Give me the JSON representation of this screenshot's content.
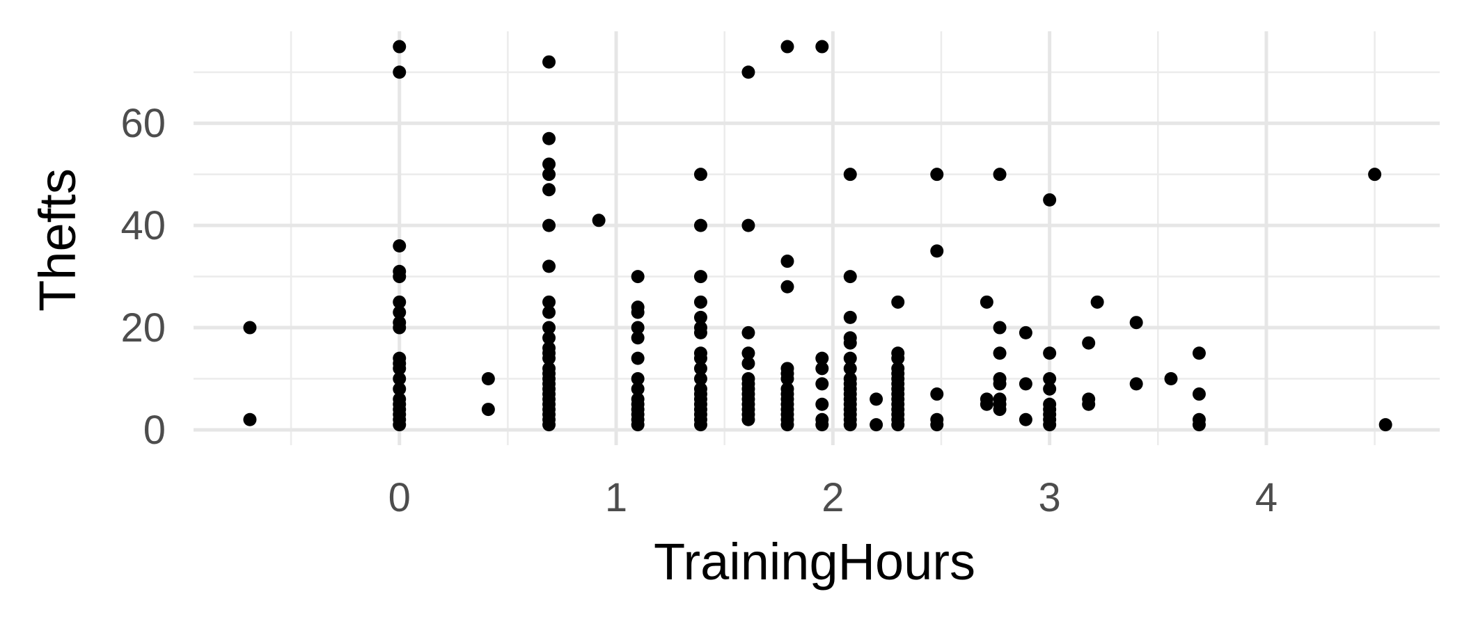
{
  "chart_data": {
    "type": "scatter",
    "title": "",
    "xlabel": "TrainingHours",
    "ylabel": "Thefts",
    "xlim": [
      -0.95,
      4.8
    ],
    "ylim": [
      -3,
      78
    ],
    "x_ticks": [
      0,
      1,
      2,
      3,
      4
    ],
    "y_ticks": [
      0,
      20,
      40,
      60
    ],
    "grid": true,
    "legend": "none",
    "point_color": "#000000",
    "points": [
      {
        "x": -0.69,
        "y": 2
      },
      {
        "x": -0.69,
        "y": 20
      },
      {
        "x": 0,
        "y": 75
      },
      {
        "x": 0,
        "y": 70
      },
      {
        "x": 0,
        "y": 36
      },
      {
        "x": 0,
        "y": 31
      },
      {
        "x": 0,
        "y": 30
      },
      {
        "x": 0,
        "y": 25
      },
      {
        "x": 0,
        "y": 23
      },
      {
        "x": 0,
        "y": 21
      },
      {
        "x": 0,
        "y": 20
      },
      {
        "x": 0,
        "y": 14
      },
      {
        "x": 0,
        "y": 13
      },
      {
        "x": 0,
        "y": 12
      },
      {
        "x": 0,
        "y": 10
      },
      {
        "x": 0,
        "y": 8
      },
      {
        "x": 0,
        "y": 6
      },
      {
        "x": 0,
        "y": 5
      },
      {
        "x": 0,
        "y": 4
      },
      {
        "x": 0,
        "y": 3
      },
      {
        "x": 0,
        "y": 2
      },
      {
        "x": 0,
        "y": 1
      },
      {
        "x": 0.41,
        "y": 10
      },
      {
        "x": 0.41,
        "y": 4
      },
      {
        "x": 0.69,
        "y": 72
      },
      {
        "x": 0.69,
        "y": 57
      },
      {
        "x": 0.69,
        "y": 52
      },
      {
        "x": 0.69,
        "y": 50
      },
      {
        "x": 0.69,
        "y": 47
      },
      {
        "x": 0.69,
        "y": 40
      },
      {
        "x": 0.69,
        "y": 32
      },
      {
        "x": 0.69,
        "y": 25
      },
      {
        "x": 0.69,
        "y": 23
      },
      {
        "x": 0.69,
        "y": 20
      },
      {
        "x": 0.69,
        "y": 18
      },
      {
        "x": 0.69,
        "y": 16
      },
      {
        "x": 0.69,
        "y": 15
      },
      {
        "x": 0.69,
        "y": 14
      },
      {
        "x": 0.69,
        "y": 12
      },
      {
        "x": 0.69,
        "y": 11
      },
      {
        "x": 0.69,
        "y": 10
      },
      {
        "x": 0.69,
        "y": 9
      },
      {
        "x": 0.69,
        "y": 8
      },
      {
        "x": 0.69,
        "y": 7
      },
      {
        "x": 0.69,
        "y": 6
      },
      {
        "x": 0.69,
        "y": 5
      },
      {
        "x": 0.69,
        "y": 4
      },
      {
        "x": 0.69,
        "y": 3
      },
      {
        "x": 0.69,
        "y": 2
      },
      {
        "x": 0.69,
        "y": 1
      },
      {
        "x": 0.92,
        "y": 41
      },
      {
        "x": 1.1,
        "y": 30
      },
      {
        "x": 1.1,
        "y": 24
      },
      {
        "x": 1.1,
        "y": 23
      },
      {
        "x": 1.1,
        "y": 20
      },
      {
        "x": 1.1,
        "y": 18
      },
      {
        "x": 1.1,
        "y": 14
      },
      {
        "x": 1.1,
        "y": 10
      },
      {
        "x": 1.1,
        "y": 8
      },
      {
        "x": 1.1,
        "y": 6
      },
      {
        "x": 1.1,
        "y": 5
      },
      {
        "x": 1.1,
        "y": 4
      },
      {
        "x": 1.1,
        "y": 3
      },
      {
        "x": 1.1,
        "y": 2
      },
      {
        "x": 1.1,
        "y": 1
      },
      {
        "x": 1.39,
        "y": 50
      },
      {
        "x": 1.39,
        "y": 40
      },
      {
        "x": 1.39,
        "y": 30
      },
      {
        "x": 1.39,
        "y": 25
      },
      {
        "x": 1.39,
        "y": 22
      },
      {
        "x": 1.39,
        "y": 20
      },
      {
        "x": 1.39,
        "y": 19
      },
      {
        "x": 1.39,
        "y": 15
      },
      {
        "x": 1.39,
        "y": 14
      },
      {
        "x": 1.39,
        "y": 12
      },
      {
        "x": 1.39,
        "y": 10
      },
      {
        "x": 1.39,
        "y": 8
      },
      {
        "x": 1.39,
        "y": 7
      },
      {
        "x": 1.39,
        "y": 6
      },
      {
        "x": 1.39,
        "y": 5
      },
      {
        "x": 1.39,
        "y": 4
      },
      {
        "x": 1.39,
        "y": 3
      },
      {
        "x": 1.39,
        "y": 2
      },
      {
        "x": 1.39,
        "y": 1
      },
      {
        "x": 1.61,
        "y": 70
      },
      {
        "x": 1.61,
        "y": 40
      },
      {
        "x": 1.61,
        "y": 19
      },
      {
        "x": 1.61,
        "y": 15
      },
      {
        "x": 1.61,
        "y": 13
      },
      {
        "x": 1.61,
        "y": 10
      },
      {
        "x": 1.61,
        "y": 9
      },
      {
        "x": 1.61,
        "y": 8
      },
      {
        "x": 1.61,
        "y": 7
      },
      {
        "x": 1.61,
        "y": 6
      },
      {
        "x": 1.61,
        "y": 5
      },
      {
        "x": 1.61,
        "y": 4
      },
      {
        "x": 1.61,
        "y": 3
      },
      {
        "x": 1.61,
        "y": 2
      },
      {
        "x": 1.79,
        "y": 75
      },
      {
        "x": 1.79,
        "y": 33
      },
      {
        "x": 1.79,
        "y": 28
      },
      {
        "x": 1.79,
        "y": 12
      },
      {
        "x": 1.79,
        "y": 11
      },
      {
        "x": 1.79,
        "y": 10
      },
      {
        "x": 1.79,
        "y": 8
      },
      {
        "x": 1.79,
        "y": 7
      },
      {
        "x": 1.79,
        "y": 6
      },
      {
        "x": 1.79,
        "y": 5
      },
      {
        "x": 1.79,
        "y": 4
      },
      {
        "x": 1.79,
        "y": 3
      },
      {
        "x": 1.79,
        "y": 2
      },
      {
        "x": 1.79,
        "y": 1
      },
      {
        "x": 1.95,
        "y": 75
      },
      {
        "x": 1.95,
        "y": 14
      },
      {
        "x": 1.95,
        "y": 12
      },
      {
        "x": 1.95,
        "y": 9
      },
      {
        "x": 1.95,
        "y": 5
      },
      {
        "x": 1.95,
        "y": 2
      },
      {
        "x": 1.95,
        "y": 1
      },
      {
        "x": 2.08,
        "y": 50
      },
      {
        "x": 2.08,
        "y": 30
      },
      {
        "x": 2.08,
        "y": 22
      },
      {
        "x": 2.08,
        "y": 18
      },
      {
        "x": 2.08,
        "y": 17
      },
      {
        "x": 2.08,
        "y": 14
      },
      {
        "x": 2.08,
        "y": 12
      },
      {
        "x": 2.08,
        "y": 10
      },
      {
        "x": 2.08,
        "y": 9
      },
      {
        "x": 2.08,
        "y": 8
      },
      {
        "x": 2.08,
        "y": 7
      },
      {
        "x": 2.08,
        "y": 6
      },
      {
        "x": 2.08,
        "y": 5
      },
      {
        "x": 2.08,
        "y": 4
      },
      {
        "x": 2.08,
        "y": 3
      },
      {
        "x": 2.08,
        "y": 2
      },
      {
        "x": 2.08,
        "y": 1
      },
      {
        "x": 2.2,
        "y": 6
      },
      {
        "x": 2.2,
        "y": 1
      },
      {
        "x": 2.3,
        "y": 25
      },
      {
        "x": 2.3,
        "y": 15
      },
      {
        "x": 2.3,
        "y": 14
      },
      {
        "x": 2.3,
        "y": 12
      },
      {
        "x": 2.3,
        "y": 11
      },
      {
        "x": 2.3,
        "y": 10
      },
      {
        "x": 2.3,
        "y": 9
      },
      {
        "x": 2.3,
        "y": 8
      },
      {
        "x": 2.3,
        "y": 7
      },
      {
        "x": 2.3,
        "y": 6
      },
      {
        "x": 2.3,
        "y": 5
      },
      {
        "x": 2.3,
        "y": 4
      },
      {
        "x": 2.3,
        "y": 3
      },
      {
        "x": 2.3,
        "y": 2
      },
      {
        "x": 2.3,
        "y": 1
      },
      {
        "x": 2.48,
        "y": 50
      },
      {
        "x": 2.48,
        "y": 35
      },
      {
        "x": 2.48,
        "y": 7
      },
      {
        "x": 2.48,
        "y": 2
      },
      {
        "x": 2.48,
        "y": 1
      },
      {
        "x": 2.71,
        "y": 25
      },
      {
        "x": 2.71,
        "y": 6
      },
      {
        "x": 2.71,
        "y": 5
      },
      {
        "x": 2.77,
        "y": 50
      },
      {
        "x": 2.77,
        "y": 20
      },
      {
        "x": 2.77,
        "y": 15
      },
      {
        "x": 2.77,
        "y": 10
      },
      {
        "x": 2.77,
        "y": 9
      },
      {
        "x": 2.77,
        "y": 6
      },
      {
        "x": 2.77,
        "y": 5
      },
      {
        "x": 2.77,
        "y": 4
      },
      {
        "x": 2.89,
        "y": 19
      },
      {
        "x": 2.89,
        "y": 9
      },
      {
        "x": 2.89,
        "y": 2
      },
      {
        "x": 3.0,
        "y": 45
      },
      {
        "x": 3.0,
        "y": 15
      },
      {
        "x": 3.0,
        "y": 10
      },
      {
        "x": 3.0,
        "y": 8
      },
      {
        "x": 3.0,
        "y": 5
      },
      {
        "x": 3.0,
        "y": 4
      },
      {
        "x": 3.0,
        "y": 3
      },
      {
        "x": 3.0,
        "y": 2
      },
      {
        "x": 3.0,
        "y": 1
      },
      {
        "x": 3.18,
        "y": 17
      },
      {
        "x": 3.18,
        "y": 6
      },
      {
        "x": 3.18,
        "y": 5
      },
      {
        "x": 3.22,
        "y": 25
      },
      {
        "x": 3.4,
        "y": 21
      },
      {
        "x": 3.4,
        "y": 9
      },
      {
        "x": 3.56,
        "y": 10
      },
      {
        "x": 3.69,
        "y": 15
      },
      {
        "x": 3.69,
        "y": 7
      },
      {
        "x": 3.69,
        "y": 2
      },
      {
        "x": 3.69,
        "y": 1
      },
      {
        "x": 4.5,
        "y": 50
      },
      {
        "x": 4.55,
        "y": 1
      }
    ]
  }
}
